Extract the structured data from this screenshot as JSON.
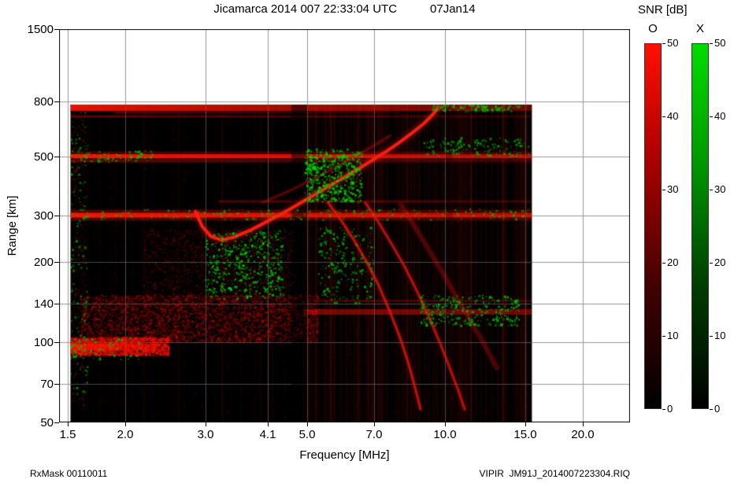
{
  "header": {
    "title": "Jicamarca 2014 007 22:33:04 UTC",
    "date": "07Jan14"
  },
  "colorbar": {
    "title": "SNR [dB]",
    "min": 0,
    "max": 50,
    "bars": [
      {
        "label": "O",
        "ticks": [
          "0",
          "10",
          "20",
          "30",
          "40",
          "50"
        ],
        "gradient": [
          "#000000",
          "#420000",
          "#a60000",
          "#ff0f00"
        ]
      },
      {
        "label": "X",
        "ticks": [
          "0",
          "10",
          "20",
          "30",
          "40",
          "50"
        ],
        "gradient": [
          "#000000",
          "#003c00",
          "#009600",
          "#00dc00"
        ]
      }
    ]
  },
  "footer": {
    "left": "RxMask 00110011",
    "right": "VIPIR  JM91J_2014007223304.RIQ"
  },
  "chart_data": {
    "type": "heatmap",
    "title": "Jicamarca 2014 007 22:33:04 UTC",
    "subtitle": "07Jan14",
    "xlabel": "Frequency [MHz]",
    "ylabel": "Range [km]",
    "x_scale": "log",
    "y_scale": "log",
    "x_range": [
      1.435,
      25.4
    ],
    "y_range": [
      50,
      1500
    ],
    "x_ticks": [
      1.5,
      2.0,
      3.0,
      4.1,
      5.0,
      7.0,
      10.0,
      15.0,
      20.0
    ],
    "x_tick_labels": [
      "1.5",
      "2.0",
      "3.0",
      "4.1",
      "5.0",
      "7.0",
      "10.0",
      "15.0",
      "20.0"
    ],
    "y_ticks": [
      50,
      70,
      100,
      140,
      200,
      300,
      500,
      800,
      1500
    ],
    "y_tick_labels": [
      "50",
      "70",
      "100",
      "140",
      "200",
      "300",
      "500",
      "800",
      "1500"
    ],
    "grid_on": true,
    "grid_color": "#999999",
    "grid_color_on_data": "rgba(135,150,170,0.5)",
    "legend": {
      "O_mode_color": "#ff0000",
      "X_mode_color": "#00cc00"
    },
    "data_extent": {
      "f": [
        1.52,
        15.5
      ],
      "r": [
        50,
        781
      ]
    },
    "features": {
      "bands": [
        {
          "r": 760,
          "th": 8,
          "f": [
            1.52,
            15.5
          ],
          "a": [
            0.9,
            0.35
          ]
        },
        {
          "r": 728,
          "th": 3,
          "f": [
            1.9,
            8.0
          ],
          "a": [
            0.3,
            0.1
          ]
        },
        {
          "r": 705,
          "th": 3,
          "f": [
            1.52,
            15.5
          ],
          "a": [
            0.35,
            0.15
          ]
        },
        {
          "r": 500,
          "th": 12,
          "f": [
            1.52,
            15.5
          ],
          "a": [
            0.25,
            0.2
          ]
        },
        {
          "r": 500,
          "th": 5,
          "f": [
            1.52,
            15.5
          ],
          "a": [
            0.95,
            0.55
          ]
        },
        {
          "r": 478,
          "th": 3,
          "f": [
            1.52,
            15.5
          ],
          "a": [
            0.3,
            0.15
          ]
        },
        {
          "r": 300,
          "th": 14,
          "f": [
            1.52,
            15.5
          ],
          "a": [
            0.3,
            0.22
          ]
        },
        {
          "r": 300,
          "th": 6,
          "f": [
            1.52,
            15.5
          ],
          "a": [
            0.95,
            0.6
          ]
        },
        {
          "r": 338,
          "th": 3,
          "f": [
            3.2,
            15.5
          ],
          "a": [
            0.3,
            0.2
          ]
        },
        {
          "r": 130,
          "th": 7,
          "f": [
            4.9,
            15.5
          ],
          "a": [
            0.45,
            0.4
          ]
        },
        {
          "r": 143,
          "th": 3,
          "f": [
            5.2,
            15.5
          ],
          "a": [
            0.25,
            0.2
          ]
        },
        {
          "r": 96,
          "th": 9,
          "f": [
            1.52,
            2.35
          ],
          "a": [
            0.9,
            0.4
          ]
        }
      ],
      "clouds_under": [
        {
          "c": "#ff1400",
          "f": [
            1.52,
            2.5
          ],
          "r": [
            89,
            104
          ],
          "n": 2200,
          "a": 0.5,
          "s": 2
        },
        {
          "c": "#e61200",
          "f": [
            1.6,
            5.3
          ],
          "r": [
            100,
            150
          ],
          "n": 4200,
          "a": 0.3,
          "s": 2
        },
        {
          "c": "#cc1000",
          "f": [
            2.2,
            4.7
          ],
          "r": [
            145,
            265
          ],
          "n": 1600,
          "a": 0.2,
          "s": 2
        },
        {
          "c": "#b80e00",
          "f": [
            1.52,
            15.5
          ],
          "r": [
            52,
            778
          ],
          "n": 3000,
          "a": 0.08,
          "s": 2
        },
        {
          "c": "#d01000",
          "f": [
            1.52,
            1.64
          ],
          "r": [
            55,
            770
          ],
          "n": 300,
          "a": 0.25,
          "s": 2
        }
      ],
      "clouds_over": [
        {
          "c": "#00d800",
          "f": [
            3.0,
            4.45
          ],
          "r": [
            145,
            262
          ],
          "n": 480,
          "a": 0.85,
          "s": 2
        },
        {
          "c": "#00d800",
          "f": [
            4.95,
            6.6
          ],
          "r": [
            335,
            530
          ],
          "n": 600,
          "a": 0.85,
          "s": 2
        },
        {
          "c": "#00c800",
          "f": [
            5.3,
            7.0
          ],
          "r": [
            140,
            270
          ],
          "n": 230,
          "a": 0.8,
          "s": 2
        },
        {
          "c": "#00c800",
          "f": [
            8.8,
            14.6
          ],
          "r": [
            115,
            150
          ],
          "n": 320,
          "a": 0.8,
          "s": 2
        },
        {
          "c": "#00c800",
          "f": [
            1.52,
            15.4
          ],
          "r": [
            288,
            316
          ],
          "n": 240,
          "a": 0.7,
          "s": 2
        },
        {
          "c": "#00c800",
          "f": [
            1.52,
            2.3
          ],
          "r": [
            475,
            525
          ],
          "n": 90,
          "a": 0.8,
          "s": 2
        },
        {
          "c": "#00c800",
          "f": [
            9.0,
            15.3
          ],
          "r": [
            495,
            585
          ],
          "n": 160,
          "a": 0.75,
          "s": 2
        },
        {
          "c": "#00c800",
          "f": [
            9.4,
            14.6
          ],
          "r": [
            735,
            778
          ],
          "n": 130,
          "a": 0.8,
          "s": 2
        },
        {
          "c": "#00c800",
          "f": [
            1.52,
            1.66
          ],
          "r": [
            60,
            760
          ],
          "n": 140,
          "a": 0.7,
          "s": 2
        },
        {
          "c": "#00c800",
          "f": [
            1.52,
            2.2
          ],
          "r": [
            86,
            104
          ],
          "n": 70,
          "a": 0.8,
          "s": 2
        }
      ],
      "stripes": [
        {
          "f": [
            4.9,
            15.45
          ],
          "n": 150,
          "a": [
            0.02,
            0.09
          ]
        },
        {
          "f": [
            1.6,
            4.9
          ],
          "n": 40,
          "a": [
            0.01,
            0.05
          ]
        }
      ],
      "gaps": [
        {
          "f": [
            4.62,
            5.0
          ],
          "a": 0.5
        },
        {
          "f": [
            10.05,
            10.4
          ],
          "a": 0.25
        }
      ],
      "traces": [
        {
          "c": "#ff2010",
          "w": 4,
          "a": 0.95,
          "g": 7,
          "p": [
            [
              2.85,
              310
            ],
            [
              2.95,
              272
            ],
            [
              3.08,
              250
            ],
            [
              3.25,
              242
            ],
            [
              3.45,
              248
            ],
            [
              3.75,
              263
            ],
            [
              4.1,
              285
            ],
            [
              4.5,
              310
            ],
            [
              5.0,
              345
            ],
            [
              5.5,
              380
            ],
            [
              6.0,
              415
            ],
            [
              6.5,
              450
            ],
            [
              7.0,
              487
            ],
            [
              7.5,
              525
            ],
            [
              8.0,
              567
            ],
            [
              8.5,
              613
            ],
            [
              9.0,
              663
            ],
            [
              9.4,
              715
            ],
            [
              9.65,
              758
            ]
          ]
        },
        {
          "c": "#d81510",
          "w": 3,
          "a": 0.3,
          "g": 4,
          "p": [
            [
              4.0,
              335
            ],
            [
              4.6,
              372
            ],
            [
              5.2,
              413
            ],
            [
              5.8,
              457
            ],
            [
              6.4,
              502
            ],
            [
              7.0,
              548
            ],
            [
              7.6,
              597
            ]
          ]
        },
        {
          "c": "#e81810",
          "w": 3,
          "a": 0.7,
          "g": 4,
          "p": [
            [
              5.55,
              335
            ],
            [
              5.95,
              285
            ],
            [
              6.35,
              240
            ],
            [
              6.75,
              200
            ],
            [
              7.15,
              165
            ],
            [
              7.55,
              133
            ],
            [
              7.95,
              106
            ],
            [
              8.3,
              85
            ],
            [
              8.6,
              68
            ],
            [
              8.85,
              56
            ]
          ]
        },
        {
          "c": "#e81810",
          "w": 3,
          "a": 0.65,
          "g": 4,
          "p": [
            [
              6.7,
              335
            ],
            [
              7.2,
              278
            ],
            [
              7.7,
              230
            ],
            [
              8.2,
              190
            ],
            [
              8.7,
              155
            ],
            [
              9.2,
              126
            ],
            [
              9.7,
              102
            ],
            [
              10.2,
              82
            ],
            [
              10.7,
              66
            ],
            [
              11.05,
              56
            ]
          ]
        },
        {
          "c": "#c81210",
          "w": 6,
          "a": 0.25,
          "g": 5,
          "p": [
            [
              8.0,
              330
            ],
            [
              8.6,
              272
            ],
            [
              9.2,
              224
            ],
            [
              9.9,
              182
            ],
            [
              10.6,
              148
            ],
            [
              11.4,
              120
            ],
            [
              12.2,
              98
            ],
            [
              13.0,
              80
            ]
          ]
        }
      ]
    }
  }
}
